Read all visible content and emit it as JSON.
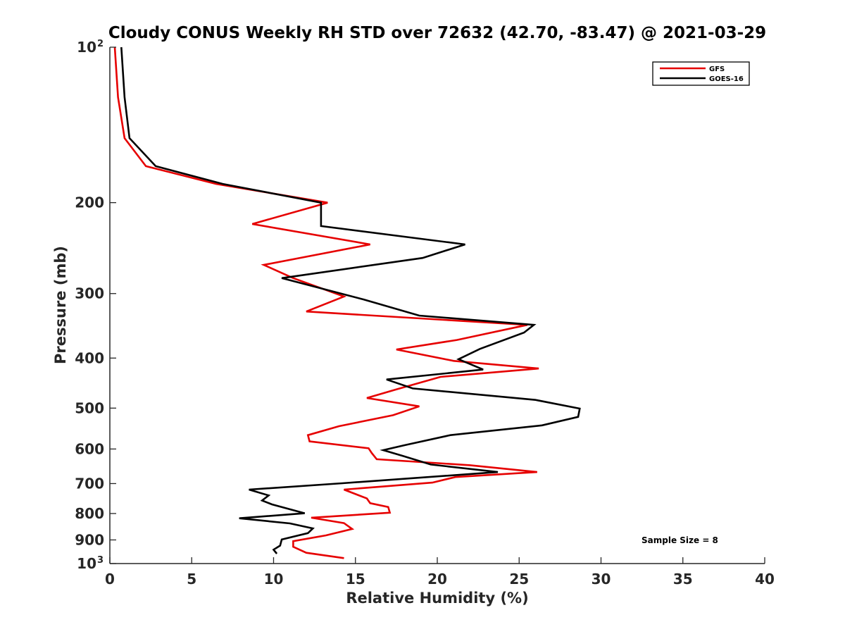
{
  "chart_data": {
    "type": "line",
    "title": "Cloudy CONUS Weekly RH STD over 72632 (42.70, -83.47) @ 2021-03-29",
    "xlabel": "Relative Humidity (%)",
    "ylabel": "Pressure (mb)",
    "xlim": [
      0,
      40
    ],
    "ylim": [
      100,
      1000
    ],
    "y_scale": "log",
    "y_reversed": true,
    "x_ticks": [
      "0",
      "5",
      "10",
      "15",
      "20",
      "25",
      "30",
      "35",
      "40"
    ],
    "x_tick_values": [
      0,
      5,
      10,
      15,
      20,
      25,
      30,
      35,
      40
    ],
    "y_ticks": [
      {
        "value": 100,
        "base": "10",
        "exp": "2"
      },
      {
        "value": 200,
        "base": "200",
        "exp": ""
      },
      {
        "value": 300,
        "base": "300",
        "exp": ""
      },
      {
        "value": 400,
        "base": "400",
        "exp": ""
      },
      {
        "value": 500,
        "base": "500",
        "exp": ""
      },
      {
        "value": 600,
        "base": "600",
        "exp": ""
      },
      {
        "value": 700,
        "base": "700",
        "exp": ""
      },
      {
        "value": 800,
        "base": "800",
        "exp": ""
      },
      {
        "value": 900,
        "base": "900",
        "exp": ""
      },
      {
        "value": 1000,
        "base": "10",
        "exp": "3"
      }
    ],
    "grid": false,
    "legend_position": "top-right",
    "annotation": "Sample Size = 8",
    "series": [
      {
        "name": "GFS",
        "color": "#e60000",
        "points": [
          [
            0.3,
            100
          ],
          [
            0.5,
            125
          ],
          [
            0.9,
            150
          ],
          [
            2.2,
            170
          ],
          [
            6.5,
            184
          ],
          [
            13.3,
            200
          ],
          [
            8.7,
            220
          ],
          [
            15.9,
            241
          ],
          [
            9.4,
            264
          ],
          [
            11.2,
            280
          ],
          [
            14.3,
            304
          ],
          [
            12.0,
            325
          ],
          [
            25.5,
            345
          ],
          [
            21.2,
            369
          ],
          [
            17.5,
            385
          ],
          [
            21.0,
            405
          ],
          [
            26.2,
            419
          ],
          [
            20.2,
            435
          ],
          [
            17.5,
            460
          ],
          [
            15.7,
            478
          ],
          [
            18.9,
            496
          ],
          [
            17.3,
            516
          ],
          [
            14.0,
            542
          ],
          [
            12.1,
            564
          ],
          [
            12.2,
            580
          ],
          [
            15.8,
            598
          ],
          [
            16.0,
            611
          ],
          [
            16.3,
            628
          ],
          [
            22.0,
            645
          ],
          [
            26.1,
            665
          ],
          [
            21.1,
            680
          ],
          [
            19.7,
            697
          ],
          [
            14.3,
            719
          ],
          [
            15.7,
            748
          ],
          [
            15.9,
            764
          ],
          [
            17.0,
            777
          ],
          [
            17.1,
            797
          ],
          [
            12.3,
            815
          ],
          [
            14.3,
            835
          ],
          [
            14.8,
            857
          ],
          [
            13.2,
            882
          ],
          [
            11.2,
            905
          ],
          [
            11.2,
            928
          ],
          [
            12.0,
            953
          ],
          [
            14.3,
            976
          ]
        ]
      },
      {
        "name": "GOES-16",
        "color": "#000000",
        "points": [
          [
            0.7,
            100
          ],
          [
            0.9,
            125
          ],
          [
            1.2,
            150
          ],
          [
            2.8,
            170
          ],
          [
            6.9,
            184
          ],
          [
            12.9,
            200
          ],
          [
            12.9,
            222
          ],
          [
            21.7,
            241
          ],
          [
            19.1,
            256
          ],
          [
            10.5,
            280
          ],
          [
            15.5,
            308
          ],
          [
            18.9,
            331
          ],
          [
            25.9,
            345
          ],
          [
            25.3,
            357
          ],
          [
            22.6,
            384
          ],
          [
            21.3,
            402
          ],
          [
            22.8,
            421
          ],
          [
            16.9,
            440
          ],
          [
            18.5,
            458
          ],
          [
            26.0,
            482
          ],
          [
            28.7,
            501
          ],
          [
            28.6,
            520
          ],
          [
            26.4,
            540
          ],
          [
            20.8,
            564
          ],
          [
            18.0,
            590
          ],
          [
            16.7,
            603
          ],
          [
            17.9,
            619
          ],
          [
            19.6,
            643
          ],
          [
            23.7,
            665
          ],
          [
            14.2,
            699
          ],
          [
            8.5,
            719
          ],
          [
            9.7,
            738
          ],
          [
            9.3,
            755
          ],
          [
            9.9,
            768
          ],
          [
            11.9,
            799
          ],
          [
            7.9,
            817
          ],
          [
            11.0,
            836
          ],
          [
            12.4,
            855
          ],
          [
            12.1,
            873
          ],
          [
            10.5,
            898
          ],
          [
            10.4,
            923
          ],
          [
            10.0,
            940
          ],
          [
            10.2,
            957
          ]
        ]
      }
    ]
  }
}
